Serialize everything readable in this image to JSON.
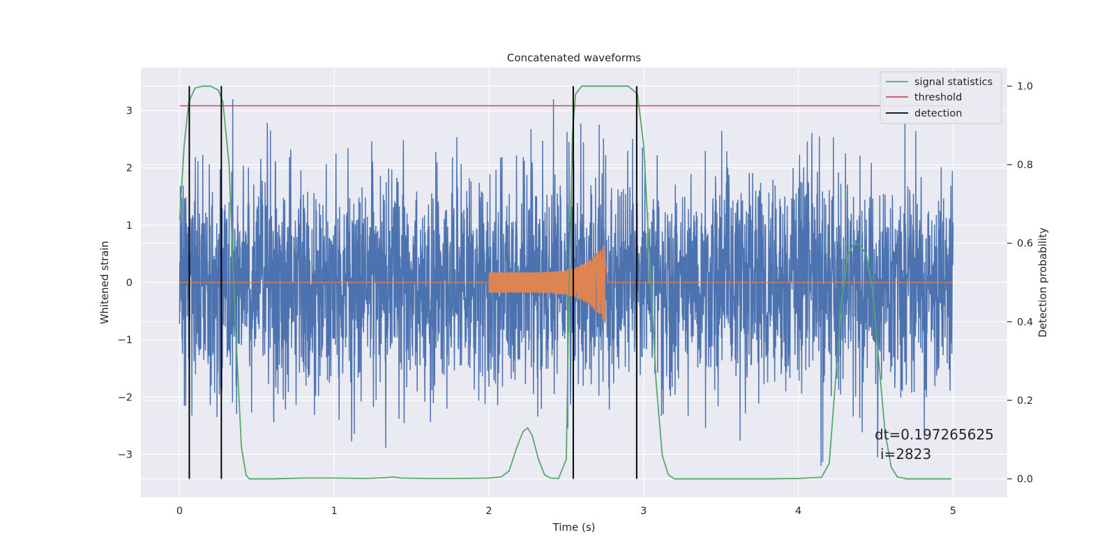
{
  "chart_data": {
    "type": "line",
    "title": "Concatenated waveforms",
    "xlabel": "Time (s)",
    "ylabel": "Whitened strain",
    "ylabel_right": "Detection probability",
    "xlim": [
      -0.25,
      5.35
    ],
    "ylim": [
      -3.75,
      3.75
    ],
    "ylim_right": [
      -0.047,
      1.047
    ],
    "x_ticks": [
      0,
      1,
      2,
      3,
      4,
      5
    ],
    "y_ticks": [
      -3,
      -2,
      -1,
      0,
      1,
      2,
      3
    ],
    "y_ticks_right": [
      0.0,
      0.2,
      0.4,
      0.6,
      0.8,
      1.0
    ],
    "x_tick_labels": [
      "0",
      "1",
      "2",
      "3",
      "4",
      "5"
    ],
    "y_tick_labels": [
      "−3",
      "−2",
      "−1",
      "0",
      "1",
      "2",
      "3"
    ],
    "y_tick_labels_right": [
      "0.0",
      "0.2",
      "0.4",
      "0.6",
      "0.8",
      "1.0"
    ],
    "grid": true,
    "legend_position": "top-right",
    "annotation": {
      "line1": "dt=0.197265625",
      "line2": "i=2823"
    },
    "series": [
      {
        "name": "",
        "axis": "left",
        "color": "#4c72b0",
        "description_kind": "noise",
        "x_range": [
          0,
          5
        ],
        "amplitude_envelope": 3.2
      },
      {
        "name": "",
        "axis": "left",
        "color": "#dd8452",
        "description_kind": "chirp",
        "x_range": [
          0,
          5
        ],
        "chirp_start": 2.0,
        "chirp_end": 2.75,
        "chirp_peak_amplitude": 0.7
      },
      {
        "name": "signal statistics",
        "axis": "right",
        "color": "#55a868",
        "x": [
          0.0,
          0.03,
          0.06,
          0.1,
          0.15,
          0.2,
          0.25,
          0.28,
          0.32,
          0.36,
          0.4,
          0.43,
          0.45,
          0.6,
          0.8,
          1.0,
          1.2,
          1.33,
          1.38,
          1.43,
          1.6,
          1.8,
          2.0,
          2.08,
          2.13,
          2.18,
          2.22,
          2.25,
          2.28,
          2.32,
          2.36,
          2.4,
          2.45,
          2.5,
          2.52,
          2.54,
          2.56,
          2.6,
          2.7,
          2.8,
          2.9,
          2.96,
          3.0,
          3.04,
          3.08,
          3.12,
          3.16,
          3.2,
          3.4,
          3.6,
          3.8,
          4.0,
          4.15,
          4.2,
          4.24,
          4.28,
          4.32,
          4.36,
          4.4,
          4.44,
          4.48,
          4.52,
          4.56,
          4.6,
          4.64,
          4.7,
          4.8,
          4.9,
          4.99
        ],
        "y": [
          0.66,
          0.85,
          0.96,
          0.995,
          1.0,
          1.0,
          0.99,
          0.96,
          0.8,
          0.4,
          0.08,
          0.01,
          0.0,
          0.0,
          0.002,
          0.002,
          0.001,
          0.003,
          0.005,
          0.002,
          0.001,
          0.001,
          0.002,
          0.005,
          0.02,
          0.08,
          0.12,
          0.13,
          0.11,
          0.05,
          0.01,
          0.002,
          0.001,
          0.05,
          0.55,
          0.88,
          0.98,
          1.0,
          1.0,
          1.0,
          1.0,
          0.98,
          0.85,
          0.55,
          0.25,
          0.06,
          0.01,
          0.0,
          0.0,
          0.0,
          0.0,
          0.001,
          0.004,
          0.04,
          0.25,
          0.45,
          0.57,
          0.6,
          0.595,
          0.57,
          0.48,
          0.3,
          0.12,
          0.03,
          0.005,
          0.0,
          0.0,
          0.0,
          0.0
        ]
      },
      {
        "name": "threshold",
        "axis": "right",
        "color": "#c44e52",
        "x": [
          0,
          5
        ],
        "y": [
          0.95,
          0.95
        ]
      },
      {
        "name": "detection",
        "axis": "right",
        "color": "#000000",
        "x_positions": [
          0.063,
          0.27,
          2.545,
          2.955
        ],
        "y_range": [
          0,
          1
        ]
      }
    ]
  }
}
